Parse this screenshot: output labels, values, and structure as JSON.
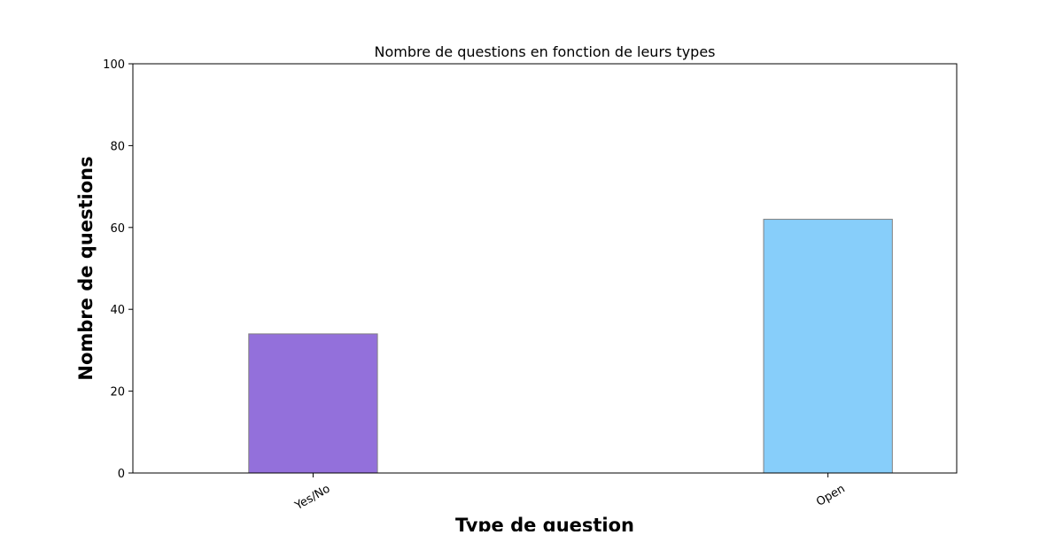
{
  "chart_data": {
    "type": "bar",
    "title": "Nombre de questions en fonction de leurs types",
    "xlabel": "Type de question",
    "ylabel": "Nombre de questions",
    "categories": [
      "Yes/No",
      "Open"
    ],
    "values": [
      34,
      62
    ],
    "colors": [
      "#9370db",
      "#87cefa"
    ],
    "edge_color": "#808080",
    "ylim": [
      0,
      100
    ],
    "yticks": [
      0,
      20,
      40,
      60,
      80,
      100
    ],
    "ytick_labels": [
      "0",
      "20",
      "40",
      "60",
      "80",
      "100"
    ],
    "grid": false,
    "legend": "none"
  }
}
